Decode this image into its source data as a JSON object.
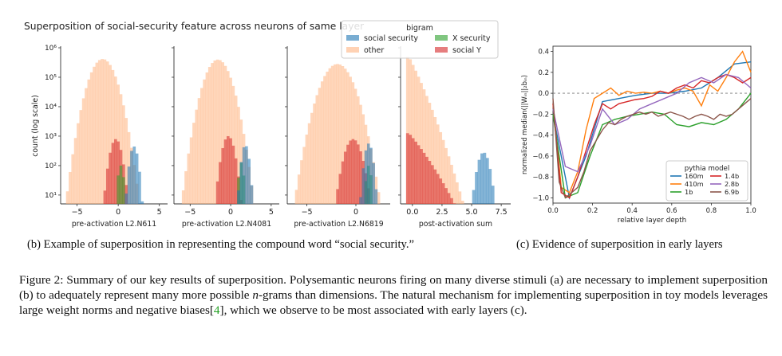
{
  "figure": {
    "panel_b_title": "Superposition of social-security feature across neurons of same layer",
    "caption_b": "(b) Example of superposition in representing the compound word “social security.”",
    "caption_c": "(c) Evidence of superposition in early layers",
    "body_before_n": "Figure 2: Summary of our key results of superposition. Polysemantic neurons firing on many diverse stimuli (a) are necessary to implement superposition (b) to adequately represent many more possible ",
    "body_n": "n",
    "body_after_n": "-grams than dimensions. The natural mechanism for implementing superposition in toy models leverages large weight norms and negative biases[",
    "body_ref": "4",
    "body_end": "], which we observe to be most associated with early layers (c).",
    "colors": {
      "social_security": "#1f77b4",
      "other": "#ffb482",
      "x_security": "#2ca02c",
      "social_y": "#d62728",
      "ref_link": "#22a022"
    }
  },
  "chart_data": [
    {
      "type": "area",
      "ylabel": "count (log scale)",
      "xlabel": "pre-activation L2.N611",
      "xticks": [
        -5,
        0,
        5
      ],
      "xlim": [
        -7,
        6
      ],
      "yscale": "log",
      "ylim_exponents": [
        0.7,
        6
      ],
      "yticks": [
        "10¹",
        "10²",
        "10³",
        "10⁴",
        "10⁵",
        "10⁶"
      ],
      "series": [
        {
          "name": "other",
          "center": -1.9,
          "width": 1.5,
          "peak": 5.62
        },
        {
          "name": "social Y",
          "center": -0.3,
          "width": 0.75,
          "peak": 2.9
        },
        {
          "name": "X security",
          "center": 0.3,
          "width": 0.4,
          "peak": 2.0
        },
        {
          "name": "social security",
          "center": 1.9,
          "width": 0.55,
          "peak": 2.65
        }
      ]
    },
    {
      "type": "area",
      "xlabel": "pre-activation L2.N4081",
      "xticks": [
        -5,
        0,
        5
      ],
      "xlim": [
        -7,
        6
      ],
      "yscale": "log",
      "ylim_exponents": [
        0.7,
        6
      ],
      "series": [
        {
          "name": "other",
          "center": -1.6,
          "width": 1.5,
          "peak": 5.6
        },
        {
          "name": "social Y",
          "center": -0.3,
          "width": 0.8,
          "peak": 3.0
        },
        {
          "name": "X security",
          "center": 1.3,
          "width": 0.35,
          "peak": 2.1
        },
        {
          "name": "social security",
          "center": 1.8,
          "width": 0.5,
          "peak": 2.7
        }
      ]
    },
    {
      "type": "area",
      "xlabel": "pre-activation L2.N6819",
      "xticks": [
        -5,
        0
      ],
      "xlim": [
        -7,
        3.5
      ],
      "yscale": "log",
      "ylim_exponents": [
        0.7,
        6
      ],
      "series": [
        {
          "name": "other",
          "center": -1.9,
          "width": 1.5,
          "peak": 5.45
        },
        {
          "name": "social Y",
          "center": -0.3,
          "width": 0.9,
          "peak": 2.9
        },
        {
          "name": "X security",
          "center": 1.3,
          "width": 0.3,
          "peak": 2.0
        },
        {
          "name": "social security",
          "center": 1.3,
          "width": 0.45,
          "peak": 2.75
        }
      ]
    },
    {
      "type": "area",
      "xlabel": "post-activation sum",
      "xticks": [
        0.0,
        2.5,
        5.0,
        7.5
      ],
      "xlim": [
        -1,
        8.3
      ],
      "yscale": "log",
      "ylim_exponents": [
        0.7,
        6
      ],
      "series": [
        {
          "name": "other",
          "decay": 0.75,
          "peak": 5.7
        },
        {
          "name": "social Y",
          "decay": 0.45,
          "peak": 3.1
        },
        {
          "name": "social security",
          "center": 6.0,
          "width": 0.55,
          "peak": 2.45
        }
      ],
      "legend": {
        "title": "bigram",
        "entries": [
          "social security",
          "X security",
          "other",
          "social Y"
        ],
        "placement": "top"
      }
    },
    {
      "type": "line",
      "xlabel": "relative layer depth",
      "ylabel": "normalized median(||Wᵢₙ||₂bᵢₙ)",
      "xlim": [
        0,
        1
      ],
      "ylim": [
        -1.05,
        0.45
      ],
      "xticks": [
        "0.0",
        "0.2",
        "0.4",
        "0.6",
        "0.8",
        "1.0"
      ],
      "yticks": [
        "-1.0",
        "-0.8",
        "-0.6",
        "-0.4",
        "-0.2",
        "0.0",
        "0.2",
        "0.4"
      ],
      "hline": 0,
      "legend": {
        "title": "pythia model",
        "placement": "lower right"
      },
      "series": [
        {
          "name": "160m",
          "color": "#1f77b4",
          "x": [
            0,
            0.083,
            0.167,
            0.25,
            0.333,
            0.417,
            0.5,
            0.583,
            0.667,
            0.75,
            0.833,
            0.917,
            1.0
          ],
          "y": [
            -0.2,
            -1.0,
            -0.6,
            -0.08,
            -0.05,
            -0.02,
            0.0,
            0.0,
            0.02,
            0.05,
            0.15,
            0.28,
            0.3
          ]
        },
        {
          "name": "410m",
          "color": "#ff7f0e",
          "x": [
            0,
            0.042,
            0.083,
            0.125,
            0.167,
            0.208,
            0.25,
            0.292,
            0.333,
            0.375,
            0.417,
            0.458,
            0.5,
            0.542,
            0.583,
            0.625,
            0.667,
            0.708,
            0.75,
            0.792,
            0.833,
            0.875,
            0.917,
            0.958,
            1.0
          ],
          "y": [
            -0.1,
            -0.9,
            -0.95,
            -0.75,
            -0.35,
            -0.05,
            0.0,
            0.05,
            -0.02,
            0.02,
            0.0,
            0.01,
            0.0,
            0.02,
            0.0,
            0.03,
            0.05,
            0.02,
            -0.12,
            0.08,
            0.02,
            0.15,
            0.3,
            0.4,
            0.2
          ]
        },
        {
          "name": "1b",
          "color": "#2ca02c",
          "x": [
            0,
            0.0625,
            0.125,
            0.1875,
            0.25,
            0.3125,
            0.375,
            0.4375,
            0.5,
            0.5625,
            0.625,
            0.6875,
            0.75,
            0.8125,
            0.875,
            0.9375,
            1.0
          ],
          "y": [
            -0.2,
            -1.0,
            -0.95,
            -0.6,
            -0.3,
            -0.25,
            -0.22,
            -0.2,
            -0.18,
            -0.2,
            -0.3,
            -0.32,
            -0.28,
            -0.3,
            -0.25,
            -0.15,
            0.0
          ]
        },
        {
          "name": "1.4b",
          "color": "#d62728",
          "x": [
            0,
            0.0417,
            0.0833,
            0.125,
            0.1667,
            0.2083,
            0.25,
            0.2917,
            0.3333,
            0.375,
            0.4167,
            0.4583,
            0.5,
            0.5417,
            0.5833,
            0.625,
            0.6667,
            0.7083,
            0.75,
            0.7917,
            0.8333,
            0.875,
            0.9167,
            0.9583,
            1.0
          ],
          "y": [
            -0.1,
            -0.95,
            -1.0,
            -0.8,
            -0.55,
            -0.3,
            -0.1,
            -0.15,
            -0.1,
            -0.08,
            -0.06,
            -0.05,
            -0.03,
            0.02,
            0.0,
            0.05,
            0.08,
            0.05,
            0.12,
            0.1,
            0.15,
            0.18,
            0.15,
            0.1,
            0.15
          ]
        },
        {
          "name": "2.8b",
          "color": "#9467bd",
          "x": [
            0,
            0.0625,
            0.125,
            0.1875,
            0.25,
            0.3125,
            0.375,
            0.4375,
            0.5,
            0.5625,
            0.625,
            0.6875,
            0.75,
            0.8125,
            0.875,
            0.9375,
            1.0
          ],
          "y": [
            -0.15,
            -0.7,
            -0.75,
            -0.5,
            -0.15,
            -0.3,
            -0.25,
            -0.15,
            -0.1,
            -0.05,
            0.0,
            0.1,
            0.15,
            0.1,
            0.18,
            0.15,
            0.05
          ]
        },
        {
          "name": "6.9b",
          "color": "#8c564b",
          "x": [
            0,
            0.03125,
            0.0625,
            0.09375,
            0.125,
            0.15625,
            0.1875,
            0.21875,
            0.25,
            0.28125,
            0.3125,
            0.34375,
            0.375,
            0.40625,
            0.4375,
            0.46875,
            0.5,
            0.53125,
            0.5625,
            0.59375,
            0.625,
            0.65625,
            0.6875,
            0.71875,
            0.75,
            0.78125,
            0.8125,
            0.84375,
            0.875,
            0.90625,
            0.9375,
            0.96875,
            1.0
          ],
          "y": [
            -0.05,
            -0.85,
            -1.0,
            -0.95,
            -0.9,
            -0.75,
            -0.55,
            -0.45,
            -0.35,
            -0.28,
            -0.3,
            -0.25,
            -0.22,
            -0.2,
            -0.18,
            -0.2,
            -0.18,
            -0.22,
            -0.2,
            -0.18,
            -0.2,
            -0.22,
            -0.25,
            -0.22,
            -0.2,
            -0.22,
            -0.25,
            -0.2,
            -0.22,
            -0.2,
            -0.15,
            -0.1,
            -0.05
          ]
        }
      ]
    }
  ]
}
